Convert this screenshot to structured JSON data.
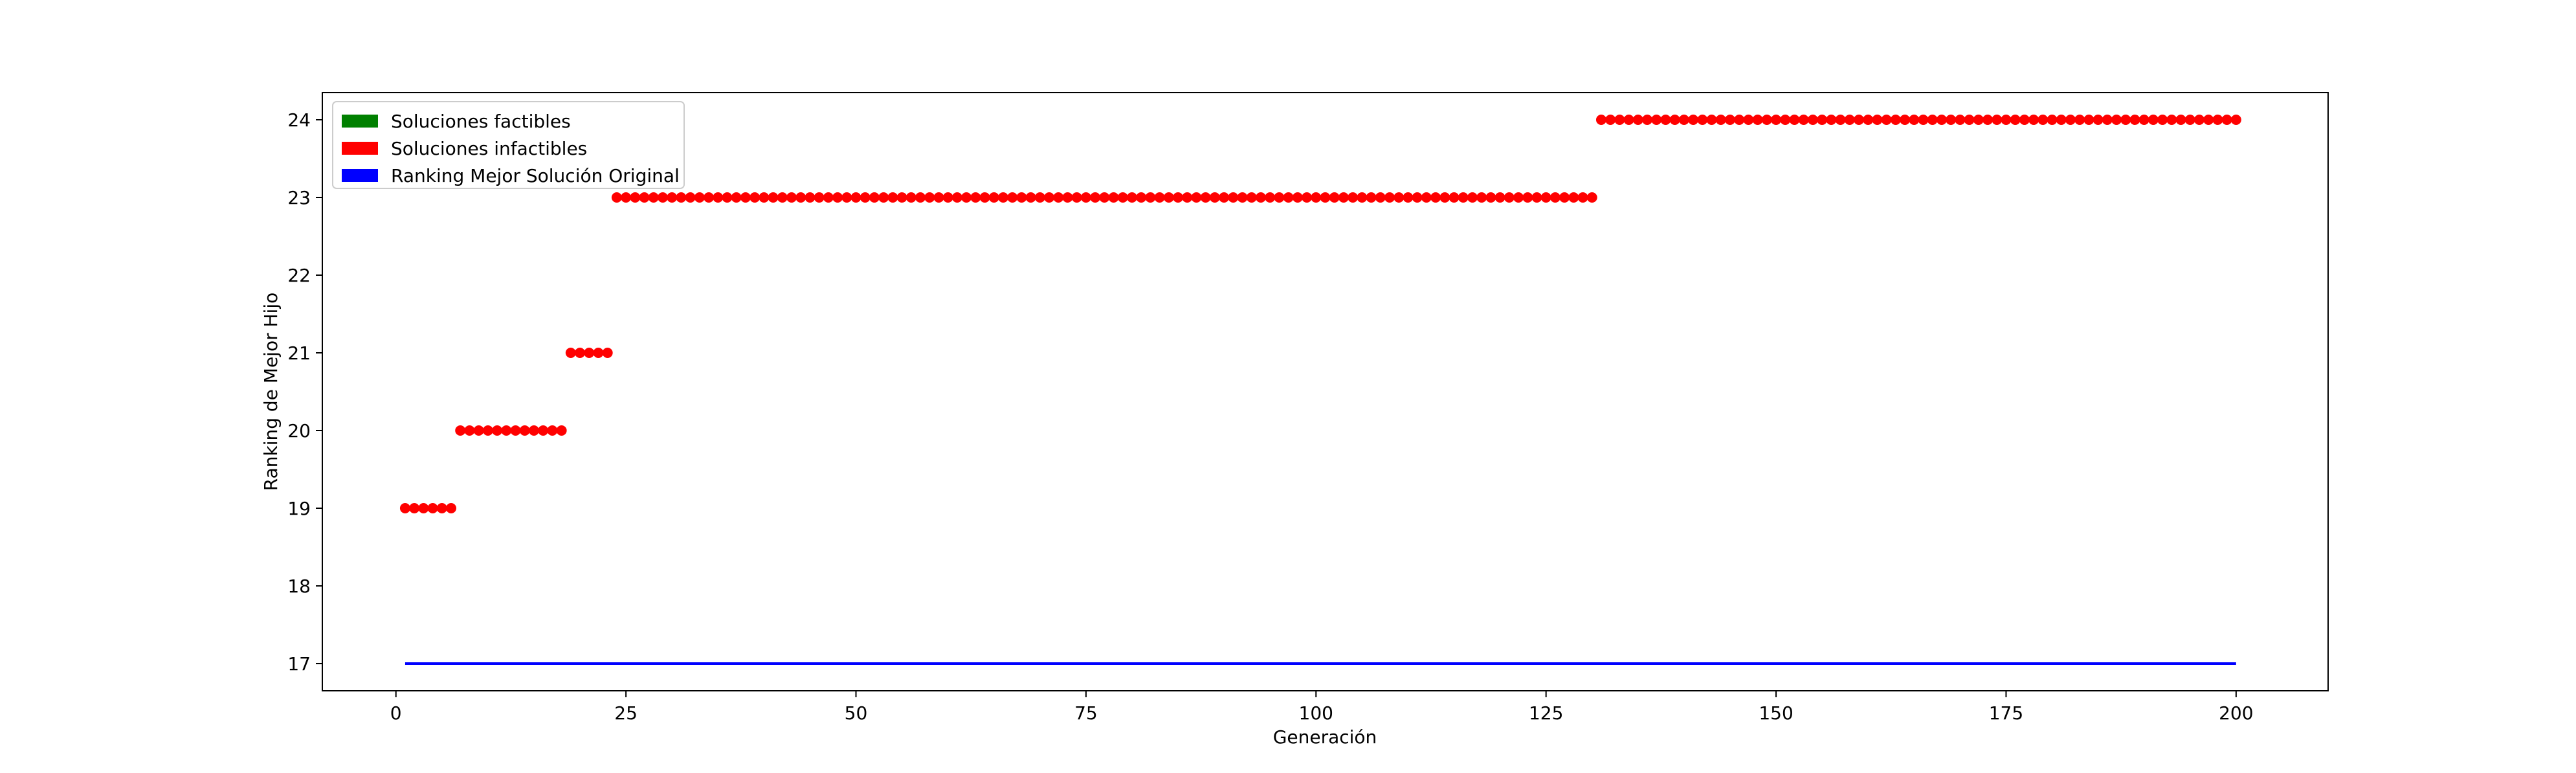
{
  "chart_data": {
    "type": "scatter",
    "title": "",
    "xlabel": "Generación",
    "ylabel": "Ranking de Mejor Hijo",
    "xlim": [
      -8,
      210
    ],
    "ylim": [
      16.65,
      24.35
    ],
    "x_ticks": [
      0,
      25,
      50,
      75,
      100,
      125,
      150,
      175,
      200
    ],
    "y_ticks": [
      17,
      18,
      19,
      20,
      21,
      22,
      23,
      24
    ],
    "grid": false,
    "legend_position": "top-left",
    "legend": [
      {
        "label": "Soluciones factibles",
        "color": "#008000"
      },
      {
        "label": "Soluciones infactibles",
        "color": "#ff0000"
      },
      {
        "label": "Ranking Mejor Solución Original",
        "color": "#0000ff"
      }
    ],
    "infeasible_segments": [
      {
        "x_start": 1,
        "x_end": 6,
        "y": 19
      },
      {
        "x_start": 7,
        "x_end": 18,
        "y": 20
      },
      {
        "x_start": 19,
        "x_end": 23,
        "y": 21
      },
      {
        "x_start": 24,
        "x_end": 130,
        "y": 23
      },
      {
        "x_start": 131,
        "x_end": 200,
        "y": 24
      }
    ],
    "reference_line": {
      "x_start": 1,
      "x_end": 200,
      "y": 17
    }
  }
}
